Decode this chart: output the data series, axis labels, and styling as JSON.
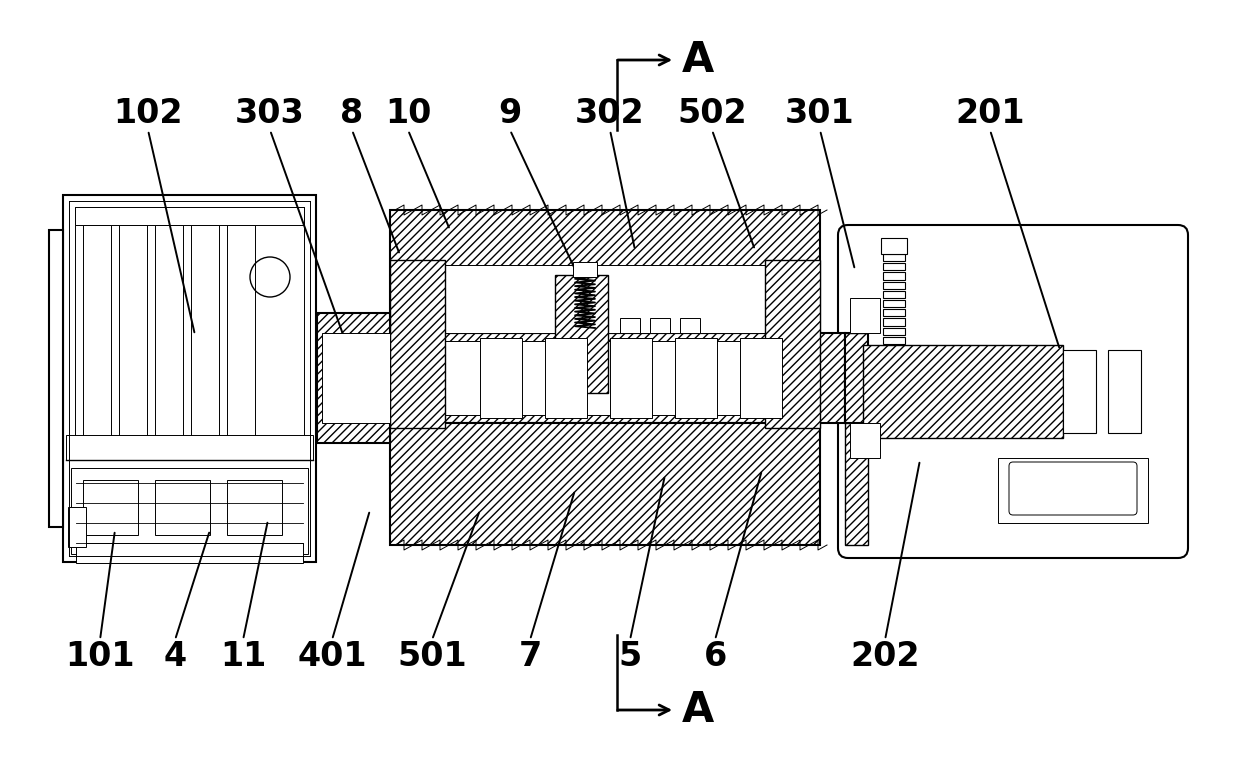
{
  "bg_color": "#ffffff",
  "line_color": "#000000",
  "figsize": [
    12.4,
    7.66
  ],
  "dpi": 100,
  "label_fontsize": 24,
  "arrow_fontsize": 30
}
